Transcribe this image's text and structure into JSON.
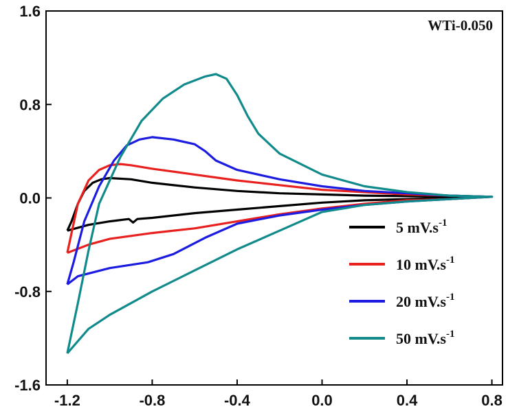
{
  "chart_data": {
    "type": "line",
    "title": "",
    "xlabel": "",
    "ylabel": "",
    "xlim": [
      -1.3,
      0.85
    ],
    "ylim": [
      -1.6,
      1.6
    ],
    "x_ticks": [
      -1.2,
      -0.8,
      -0.4,
      0.0,
      0.4,
      0.8
    ],
    "x_tick_labels": [
      "-1.2",
      "-0.8",
      "-0.4",
      "0.0",
      "0.4",
      "0.8"
    ],
    "y_ticks": [
      -1.6,
      -0.8,
      0.0,
      0.8,
      1.6
    ],
    "y_tick_labels": [
      "-1.6",
      "-0.8",
      "0.0",
      "0.8",
      "1.6"
    ],
    "annotation": "WTi-0.050",
    "grid": false,
    "legend_position": "lower-right",
    "series": [
      {
        "name": "5   mV.s",
        "superscript": "-1",
        "color": "#000000",
        "points": [
          [
            -1.2,
            -0.28
          ],
          [
            -1.18,
            -0.2
          ],
          [
            -1.15,
            -0.05
          ],
          [
            -1.12,
            0.06
          ],
          [
            -1.08,
            0.13
          ],
          [
            -1.04,
            0.16
          ],
          [
            -1.0,
            0.17
          ],
          [
            -0.9,
            0.16
          ],
          [
            -0.8,
            0.13
          ],
          [
            -0.6,
            0.09
          ],
          [
            -0.4,
            0.06
          ],
          [
            -0.2,
            0.04
          ],
          [
            0.0,
            0.03
          ],
          [
            0.2,
            0.02
          ],
          [
            0.4,
            0.015
          ],
          [
            0.6,
            0.01
          ],
          [
            0.8,
            0.01
          ],
          [
            0.6,
            0.0
          ],
          [
            0.4,
            -0.01
          ],
          [
            0.2,
            -0.02
          ],
          [
            0.0,
            -0.04
          ],
          [
            -0.2,
            -0.07
          ],
          [
            -0.4,
            -0.1
          ],
          [
            -0.6,
            -0.13
          ],
          [
            -0.8,
            -0.17
          ],
          [
            -0.87,
            -0.18
          ],
          [
            -0.89,
            -0.21
          ],
          [
            -0.91,
            -0.18
          ],
          [
            -1.0,
            -0.2
          ],
          [
            -1.1,
            -0.23
          ],
          [
            -1.2,
            -0.28
          ]
        ]
      },
      {
        "name": "10 mV.s",
        "superscript": "-1",
        "color": "#e8201e",
        "points": [
          [
            -1.2,
            -0.47
          ],
          [
            -1.18,
            -0.3
          ],
          [
            -1.15,
            -0.05
          ],
          [
            -1.1,
            0.15
          ],
          [
            -1.05,
            0.24
          ],
          [
            -1.0,
            0.28
          ],
          [
            -0.95,
            0.29
          ],
          [
            -0.9,
            0.28
          ],
          [
            -0.8,
            0.25
          ],
          [
            -0.6,
            0.2
          ],
          [
            -0.4,
            0.15
          ],
          [
            -0.2,
            0.11
          ],
          [
            0.0,
            0.07
          ],
          [
            0.2,
            0.05
          ],
          [
            0.4,
            0.03
          ],
          [
            0.6,
            0.02
          ],
          [
            0.8,
            0.01
          ],
          [
            0.6,
            -0.01
          ],
          [
            0.4,
            -0.02
          ],
          [
            0.2,
            -0.05
          ],
          [
            0.0,
            -0.09
          ],
          [
            -0.2,
            -0.14
          ],
          [
            -0.4,
            -0.2
          ],
          [
            -0.6,
            -0.26
          ],
          [
            -0.8,
            -0.3
          ],
          [
            -1.0,
            -0.35
          ],
          [
            -1.1,
            -0.4
          ],
          [
            -1.2,
            -0.47
          ]
        ]
      },
      {
        "name": "20 mV.s",
        "superscript": "-1",
        "color": "#1c1ce0",
        "points": [
          [
            -1.2,
            -0.74
          ],
          [
            -1.17,
            -0.55
          ],
          [
            -1.12,
            -0.2
          ],
          [
            -1.05,
            0.1
          ],
          [
            -0.98,
            0.32
          ],
          [
            -0.92,
            0.45
          ],
          [
            -0.86,
            0.5
          ],
          [
            -0.8,
            0.52
          ],
          [
            -0.7,
            0.5
          ],
          [
            -0.6,
            0.46
          ],
          [
            -0.55,
            0.4
          ],
          [
            -0.5,
            0.32
          ],
          [
            -0.4,
            0.24
          ],
          [
            -0.2,
            0.16
          ],
          [
            0.0,
            0.1
          ],
          [
            0.2,
            0.06
          ],
          [
            0.4,
            0.04
          ],
          [
            0.6,
            0.02
          ],
          [
            0.8,
            0.01
          ],
          [
            0.6,
            -0.01
          ],
          [
            0.4,
            -0.03
          ],
          [
            0.2,
            -0.06
          ],
          [
            0.0,
            -0.1
          ],
          [
            -0.2,
            -0.15
          ],
          [
            -0.4,
            -0.22
          ],
          [
            -0.55,
            -0.34
          ],
          [
            -0.7,
            -0.48
          ],
          [
            -0.82,
            -0.55
          ],
          [
            -1.0,
            -0.6
          ],
          [
            -1.15,
            -0.67
          ],
          [
            -1.2,
            -0.74
          ]
        ]
      },
      {
        "name": "50 mV.s",
        "superscript": "-1",
        "color": "#118a8c",
        "points": [
          [
            -1.2,
            -1.33
          ],
          [
            -1.15,
            -0.9
          ],
          [
            -1.1,
            -0.45
          ],
          [
            -1.05,
            -0.05
          ],
          [
            -0.95,
            0.35
          ],
          [
            -0.85,
            0.66
          ],
          [
            -0.75,
            0.85
          ],
          [
            -0.65,
            0.97
          ],
          [
            -0.55,
            1.04
          ],
          [
            -0.5,
            1.06
          ],
          [
            -0.45,
            1.02
          ],
          [
            -0.4,
            0.88
          ],
          [
            -0.35,
            0.7
          ],
          [
            -0.3,
            0.55
          ],
          [
            -0.2,
            0.38
          ],
          [
            0.0,
            0.2
          ],
          [
            0.2,
            0.1
          ],
          [
            0.4,
            0.05
          ],
          [
            0.6,
            0.02
          ],
          [
            0.8,
            0.01
          ],
          [
            0.6,
            -0.01
          ],
          [
            0.4,
            -0.03
          ],
          [
            0.2,
            -0.06
          ],
          [
            0.0,
            -0.12
          ],
          [
            -0.2,
            -0.28
          ],
          [
            -0.4,
            -0.44
          ],
          [
            -0.6,
            -0.62
          ],
          [
            -0.8,
            -0.8
          ],
          [
            -1.0,
            -1.0
          ],
          [
            -1.1,
            -1.12
          ],
          [
            -1.2,
            -1.33
          ]
        ]
      }
    ]
  }
}
